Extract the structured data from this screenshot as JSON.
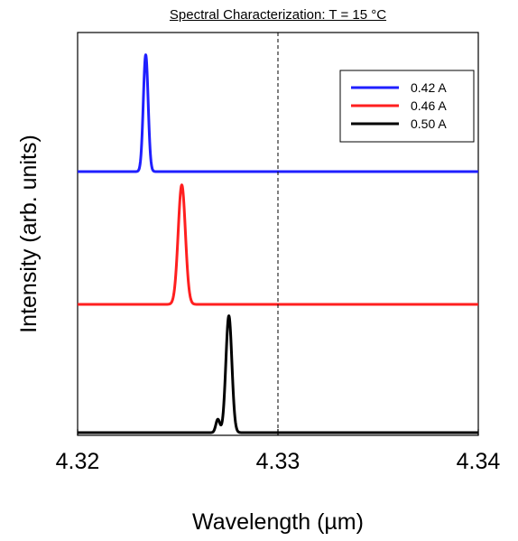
{
  "chart_data": {
    "type": "line",
    "title": "Spectral Characterization: T = 15 °C",
    "xlabel": "Wavelength (µm)",
    "ylabel": "Intensity (arb. units)",
    "xlim": [
      4.32,
      4.34
    ],
    "x_ticks": [
      "4.32",
      "4.33",
      "4.34"
    ],
    "y_ticks_labeled": false,
    "grid": false,
    "legend_position": "top-right",
    "reference_line": {
      "x": 4.33,
      "style": "dashed"
    },
    "series": [
      {
        "name": "0.42 A",
        "color": "#1f1fff",
        "baseline_level": 2,
        "peaks": [
          {
            "center": 4.3234,
            "height": 0.88,
            "width": 0.00012
          }
        ]
      },
      {
        "name": "0.46 A",
        "color": "#ff1f1f",
        "baseline_level": 1,
        "peaks": [
          {
            "center": 4.3252,
            "height": 0.9,
            "width": 0.00018
          }
        ]
      },
      {
        "name": "0.50 A",
        "color": "#000000",
        "baseline_level": 0,
        "peaks": [
          {
            "center": 4.32755,
            "height": 0.88,
            "width": 0.00015
          },
          {
            "center": 4.327,
            "height": 0.1,
            "width": 0.0001
          }
        ]
      }
    ]
  }
}
